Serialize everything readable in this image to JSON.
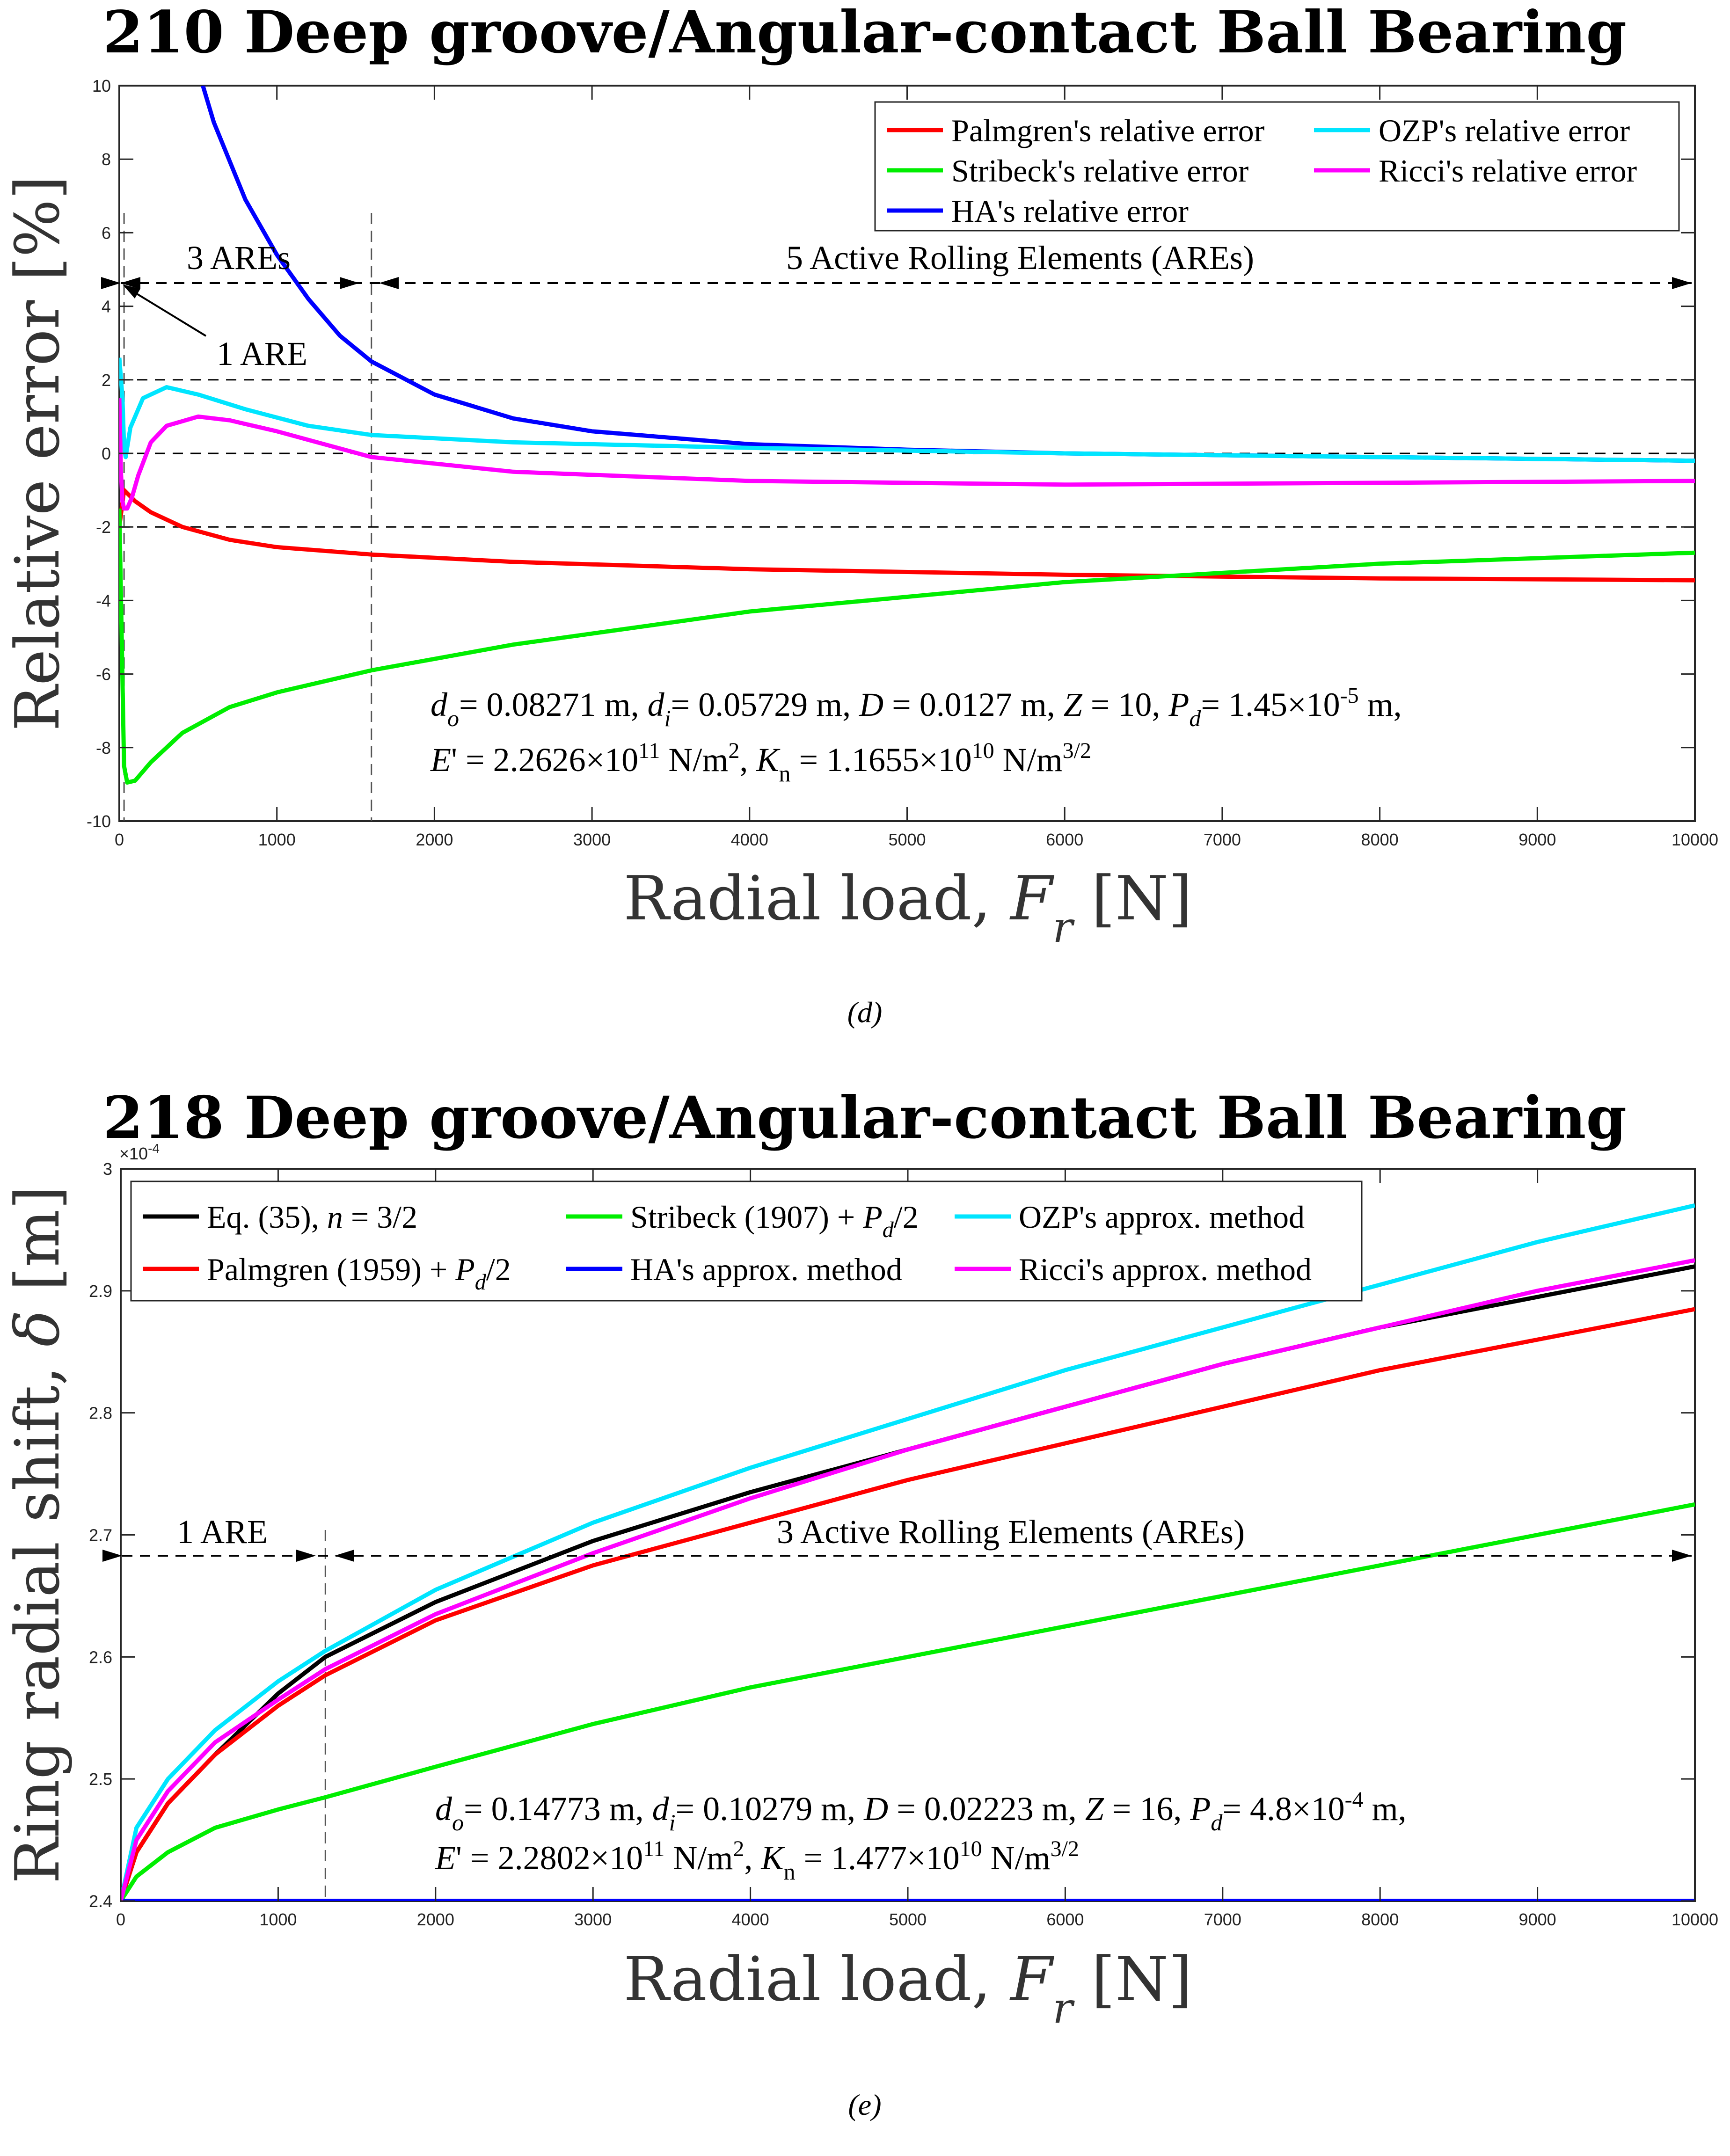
{
  "chart_data": [
    {
      "type": "line",
      "title": "210 Deep groove/Angular-contact Ball Bearing",
      "xlabel": "Radial load, F_r [N]",
      "xlabel_parts": {
        "pre": "Radial load, ",
        "var": "F",
        "sub": "r",
        "post": "[N]"
      },
      "ylabel": "Relative error [%]",
      "xlim": [
        0,
        10000
      ],
      "ylim": [
        -10,
        10
      ],
      "xticks": [
        "0",
        "1000",
        "2000",
        "3000",
        "4000",
        "5000",
        "6000",
        "7000",
        "8000",
        "9000",
        "10000"
      ],
      "xtick_values": [
        0,
        1000,
        2000,
        3000,
        4000,
        5000,
        6000,
        7000,
        8000,
        9000,
        10000
      ],
      "yticks": [
        "-10",
        "-8",
        "-6",
        "-4",
        "-2",
        "0",
        "2",
        "4",
        "6",
        "8",
        "10"
      ],
      "ytick_values": [
        -10,
        -8,
        -6,
        -4,
        -2,
        0,
        2,
        4,
        6,
        8,
        10
      ],
      "reference_lines": [
        2,
        0,
        -2
      ],
      "vlines": [
        30,
        1600
      ],
      "caption": "(d)",
      "regions": [
        {
          "label": "1 ARE",
          "note": "arrow pointing to left boundary"
        },
        {
          "label": "3 AREs",
          "x_range": [
            30,
            1600
          ]
        },
        {
          "label": "5 Active Rolling Elements (AREs)",
          "x_range": [
            1600,
            10000
          ]
        }
      ],
      "params_line1": {
        "do": "= 0.08271 m,",
        "di": "= 0.05729 m,",
        "D": "= 0.0127 m,",
        "Z": "= 10,",
        "Pd": "= 1.45×10",
        "Pd_exp": "-5",
        "Pd_unit": " m,"
      },
      "params_line2": {
        "E": "' = 2.2626×10",
        "E_exp": "11",
        "E_unit": " N/m",
        "E_unit_exp": "2",
        "Kn": " = 1.1655×10",
        "Kn_exp": "10",
        "Kn_unit": " N/m",
        "Kn_unit_exp": "3/2"
      },
      "legend": [
        "Palmgren's relative error",
        "OZP's relative error",
        "Stribeck's relative error",
        "Ricci's relative error",
        "HA's relative error"
      ],
      "series": [
        {
          "name": "Palmgren's relative error",
          "color": "#ff0000",
          "x": [
            0,
            30,
            100,
            200,
            400,
            700,
            1000,
            1600,
            2500,
            4000,
            6000,
            8000,
            10000
          ],
          "y": [
            -2,
            -1.0,
            -1.3,
            -1.6,
            -2.0,
            -2.35,
            -2.55,
            -2.75,
            -2.95,
            -3.15,
            -3.3,
            -3.4,
            -3.45
          ]
        },
        {
          "name": "Stribeck's relative error",
          "color": "#00ee00",
          "x": [
            0,
            15,
            30,
            50,
            100,
            200,
            400,
            700,
            1000,
            1600,
            2500,
            4000,
            6000,
            8000,
            10000
          ],
          "y": [
            -1.5,
            -5,
            -8.5,
            -8.95,
            -8.9,
            -8.4,
            -7.6,
            -6.9,
            -6.5,
            -5.9,
            -5.2,
            -4.3,
            -3.5,
            -3.0,
            -2.7
          ]
        },
        {
          "name": "HA's relative error",
          "color": "#0000ff",
          "x": [
            530,
            600,
            800,
            1000,
            1200,
            1400,
            1600,
            2000,
            2500,
            3000,
            4000,
            5000,
            6000,
            7000,
            8000,
            10000
          ],
          "y": [
            10,
            9.0,
            6.9,
            5.4,
            4.2,
            3.2,
            2.5,
            1.6,
            0.95,
            0.6,
            0.25,
            0.1,
            0,
            -0.05,
            -0.1,
            -0.2
          ]
        },
        {
          "name": "OZP's relative error",
          "color": "#00e5ff",
          "x": [
            0,
            20,
            30,
            40,
            70,
            150,
            300,
            500,
            800,
            1200,
            1600,
            2500,
            4000,
            6000,
            8000,
            10000
          ],
          "y": [
            2.6,
            1.5,
            0.2,
            -0.1,
            0.7,
            1.5,
            1.8,
            1.6,
            1.2,
            0.75,
            0.5,
            0.3,
            0.15,
            0,
            -0.1,
            -0.2
          ]
        },
        {
          "name": "Ricci's relative error",
          "color": "#ff00ff",
          "x": [
            0,
            10,
            20,
            30,
            50,
            80,
            120,
            200,
            300,
            500,
            700,
            1000,
            1600,
            2500,
            4000,
            6000,
            8000,
            10000
          ],
          "y": [
            1.5,
            -0.5,
            -1.3,
            -1.5,
            -1.5,
            -1.2,
            -0.6,
            0.3,
            0.75,
            1.0,
            0.9,
            0.6,
            -0.1,
            -0.5,
            -0.75,
            -0.85,
            -0.8,
            -0.75
          ]
        }
      ]
    },
    {
      "type": "line",
      "title": "218 Deep groove/Angular-contact Ball Bearing",
      "xlabel": "Radial load, F_r [N]",
      "xlabel_parts": {
        "pre": "Radial load, ",
        "var": "F",
        "sub": "r",
        "post": "[N]"
      },
      "ylabel": "Ring radial shift, δ [m]",
      "ylabel_parts": {
        "pre": "Ring radial shift, ",
        "var": "δ",
        "post": " [m]"
      },
      "yscale_label": "×10",
      "yscale_exp": "-4",
      "xlim": [
        0,
        10000
      ],
      "ylim": [
        2.4,
        3.0
      ],
      "xticks": [
        "0",
        "1000",
        "2000",
        "3000",
        "4000",
        "5000",
        "6000",
        "7000",
        "8000",
        "9000",
        "10000"
      ],
      "xtick_values": [
        0,
        1000,
        2000,
        3000,
        4000,
        5000,
        6000,
        7000,
        8000,
        9000,
        10000
      ],
      "yticks": [
        "2.4",
        "2.5",
        "2.6",
        "2.7",
        "2.8",
        "2.9",
        "3"
      ],
      "ytick_values": [
        2.4,
        2.5,
        2.6,
        2.7,
        2.8,
        2.9,
        3.0
      ],
      "vlines": [
        1300
      ],
      "caption": "(e)",
      "regions": [
        {
          "label": "1 ARE",
          "x_range": [
            0,
            1300
          ]
        },
        {
          "label": "3 Active Rolling Elements (AREs)",
          "x_range": [
            1300,
            10000
          ]
        }
      ],
      "params_line1": {
        "do": "= 0.14773 m,",
        "di": "= 0.10279 m,",
        "D": "= 0.02223 m,",
        "Z": "= 16,",
        "Pd": "= 4.8×10",
        "Pd_exp": "-4",
        "Pd_unit": " m,"
      },
      "params_line2": {
        "E": "' = 2.2802×10",
        "E_exp": "11",
        "E_unit": " N/m",
        "E_unit_exp": "2",
        "Kn": " = 1.477×10",
        "Kn_exp": "10",
        "Kn_unit": " N/m",
        "Kn_unit_exp": "3/2"
      },
      "legend": [
        "Eq. (35), n = 3/2",
        "Stribeck (1907) + P_d/2",
        "OZP's approx. method",
        "Palmgren (1959) + P_d/2",
        "HA's approx. method",
        "Ricci's approx. method"
      ],
      "series": [
        {
          "name": "Eq. (35), n = 3/2",
          "color": "#000000",
          "x": [
            0,
            100,
            300,
            600,
            1000,
            1300,
            2000,
            3000,
            4000,
            5000,
            6000,
            7000,
            8000,
            9000,
            10000
          ],
          "y": [
            2.4,
            2.44,
            2.48,
            2.52,
            2.57,
            2.6,
            2.645,
            2.695,
            2.735,
            2.77,
            2.805,
            2.84,
            2.87,
            2.895,
            2.92
          ]
        },
        {
          "name": "Palmgren (1959) + P_d/2",
          "color": "#ff0000",
          "x": [
            0,
            100,
            300,
            600,
            1000,
            1300,
            2000,
            3000,
            4000,
            5000,
            6000,
            7000,
            8000,
            9000,
            10000
          ],
          "y": [
            2.4,
            2.44,
            2.48,
            2.52,
            2.56,
            2.585,
            2.63,
            2.675,
            2.71,
            2.745,
            2.775,
            2.805,
            2.835,
            2.86,
            2.885
          ]
        },
        {
          "name": "Stribeck (1907) + P_d/2",
          "color": "#00ee00",
          "x": [
            0,
            100,
            300,
            600,
            1000,
            1300,
            2000,
            3000,
            4000,
            5000,
            6000,
            7000,
            8000,
            9000,
            10000
          ],
          "y": [
            2.4,
            2.42,
            2.44,
            2.46,
            2.475,
            2.485,
            2.51,
            2.545,
            2.575,
            2.6,
            2.625,
            2.65,
            2.675,
            2.7,
            2.725
          ]
        },
        {
          "name": "OZP's approx. method",
          "color": "#00e5ff",
          "x": [
            0,
            100,
            300,
            600,
            1000,
            1300,
            2000,
            3000,
            4000,
            5000,
            6000,
            7000,
            8000,
            9000,
            10000
          ],
          "y": [
            2.4,
            2.46,
            2.5,
            2.54,
            2.58,
            2.605,
            2.655,
            2.71,
            2.755,
            2.795,
            2.835,
            2.87,
            2.905,
            2.94,
            2.97
          ]
        },
        {
          "name": "HA's approx. method",
          "color": "#0000ff",
          "x": [
            0,
            10000
          ],
          "y": [
            2.4,
            2.4
          ]
        },
        {
          "name": "Ricci's approx. method",
          "color": "#ff00ff",
          "x": [
            0,
            100,
            300,
            600,
            1000,
            1300,
            2000,
            3000,
            4000,
            5000,
            6000,
            7000,
            8000,
            9000,
            10000
          ],
          "y": [
            2.4,
            2.45,
            2.49,
            2.53,
            2.565,
            2.59,
            2.635,
            2.685,
            2.73,
            2.77,
            2.805,
            2.84,
            2.87,
            2.9,
            2.925
          ]
        }
      ]
    }
  ]
}
